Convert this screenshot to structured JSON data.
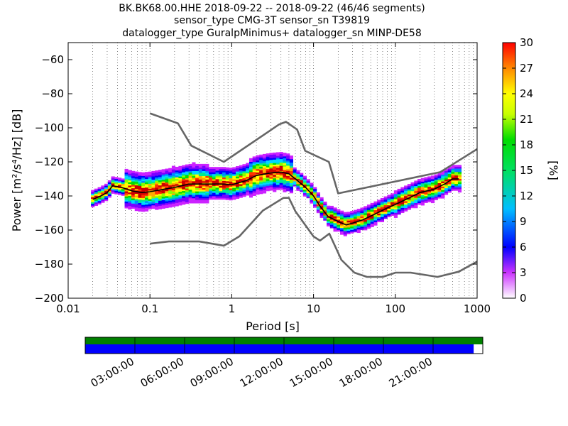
{
  "title_lines": [
    "BK.BK68.00.HHE   2018-09-22 -- 2018-09-22  (46/46 segments)",
    "sensor_type CMG-3T sensor_sn T39819",
    "datalogger_type GuralpMinimus+ datalogger_sn MINP-DE58"
  ],
  "chart_data": {
    "type": "heatmap",
    "xlabel": "Period [s]",
    "ylabel": "Power [m²/s⁴/Hz] [dB]",
    "xscale": "log",
    "xlim": [
      0.01,
      1000
    ],
    "ylim": [
      -200,
      -50
    ],
    "x_ticks": [
      0.01,
      0.1,
      1,
      10,
      100,
      1000
    ],
    "x_tick_labels": [
      "0.01",
      "0.1",
      "1",
      "10",
      "100",
      "1000"
    ],
    "y_ticks": [
      -200,
      -180,
      -160,
      -140,
      -120,
      -100,
      -80,
      -60
    ],
    "y_tick_labels": [
      "−200",
      "−180",
      "−160",
      "−140",
      "−120",
      "−100",
      "−80",
      "−60"
    ],
    "grid": "dotted, vertical",
    "colorbar": {
      "label": "[%]",
      "range": [
        0,
        30
      ],
      "ticks": [
        0,
        3,
        6,
        9,
        12,
        15,
        18,
        21,
        24,
        27,
        30
      ],
      "colormap": "pqlx"
    },
    "series": [
      {
        "kind": "noise_model_high",
        "color": "#666666",
        "x": [
          0.1,
          0.22,
          0.32,
          0.8,
          3.8,
          4.6,
          6.3,
          7.9,
          15.4,
          20,
          354.8,
          1000
        ],
        "y": [
          -91.5,
          -97.4,
          -110.5,
          -120,
          -98,
          -96.5,
          -101,
          -113.5,
          -120,
          -138.5,
          -126,
          -112.5
        ]
      },
      {
        "kind": "noise_model_low",
        "color": "#666666",
        "x": [
          0.1,
          0.17,
          0.4,
          0.8,
          1.24,
          2.4,
          4.3,
          5,
          6,
          10,
          12,
          15.6,
          21.9,
          31.6,
          45,
          70,
          101,
          154,
          328,
          600,
          1000
        ],
        "y": [
          -168,
          -166.7,
          -166.7,
          -169.2,
          -163.7,
          -148.6,
          -141.1,
          -141.1,
          -149,
          -163.8,
          -166.2,
          -162.1,
          -177.5,
          -185,
          -187.5,
          -187.5,
          -185,
          -185,
          -187.5,
          -184.4,
          -178.5
        ]
      },
      {
        "kind": "mode",
        "color": "#000000",
        "x": [
          0.02,
          0.025,
          0.03,
          0.035,
          0.045,
          0.06,
          0.08,
          0.1,
          0.15,
          0.2,
          0.3,
          0.5,
          0.8,
          1.0,
          1.5,
          2,
          3,
          4,
          5,
          6,
          8,
          10,
          12,
          15,
          20,
          25,
          30,
          40,
          60,
          80,
          100,
          150,
          200,
          300,
          400,
          500,
          600
        ],
        "y": [
          -142,
          -140,
          -138,
          -134,
          -135,
          -137,
          -138,
          -137.5,
          -136,
          -135,
          -133,
          -133,
          -133,
          -133.5,
          -131,
          -128,
          -126.5,
          -126,
          -127,
          -130,
          -135,
          -140,
          -146,
          -152,
          -155,
          -157,
          -156,
          -154,
          -150,
          -147,
          -145,
          -141,
          -138,
          -136,
          -133,
          -130,
          -130
        ]
      }
    ],
    "timeline": {
      "time_labels": [
        "03:00:00",
        "06:00:00",
        "09:00:00",
        "12:00:00",
        "15:00:00",
        "18:00:00",
        "21:00:00"
      ],
      "time_hours": [
        3,
        6,
        9,
        12,
        15,
        18,
        21
      ],
      "green_bar_coverage": 1.0,
      "blue_bar_coverage": 0.977,
      "green": "#008000",
      "blue": "#0000ff"
    }
  }
}
